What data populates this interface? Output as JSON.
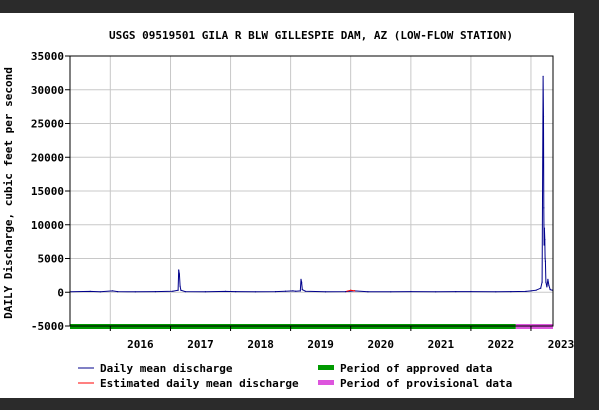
{
  "chart_data": {
    "type": "line",
    "title": "USGS 09519501 GILA R BLW GILLESPIE DAM, AZ (LOW-FLOW STATION)",
    "ylabel": "DAILY Discharge, cubic feet per second",
    "xlabel": "",
    "x_range": [
      "2015-05-01",
      "2023-05-15"
    ],
    "ylim": [
      -5000,
      35000
    ],
    "y_ticks": [
      -5000,
      0,
      5000,
      10000,
      15000,
      20000,
      25000,
      30000,
      35000
    ],
    "y_tick_labels": [
      "-5000",
      "0",
      "5000",
      "10000",
      "15000",
      "20000",
      "25000",
      "30000",
      "35000"
    ],
    "x_ticks": [
      "2016-01-01",
      "2017-01-01",
      "2018-01-01",
      "2019-01-01",
      "2020-01-01",
      "2021-01-01",
      "2022-01-01",
      "2023-01-01"
    ],
    "x_tick_labels": [
      "2016",
      "2017",
      "2018",
      "2019",
      "2020",
      "2021",
      "2022",
      "2023"
    ],
    "grid": true,
    "legend_placement": "bottom",
    "series": [
      {
        "name": "Daily mean discharge",
        "color": "#00008b",
        "style": "line",
        "points": [
          [
            "2015-05-01",
            80
          ],
          [
            "2015-09-01",
            120
          ],
          [
            "2015-11-01",
            60
          ],
          [
            "2016-01-15",
            200
          ],
          [
            "2016-02-15",
            90
          ],
          [
            "2016-06-01",
            60
          ],
          [
            "2016-10-01",
            100
          ],
          [
            "2017-01-15",
            150
          ],
          [
            "2017-02-16",
            300
          ],
          [
            "2017-02-20",
            3300
          ],
          [
            "2017-02-24",
            2700
          ],
          [
            "2017-02-28",
            900
          ],
          [
            "2017-03-05",
            300
          ],
          [
            "2017-04-01",
            100
          ],
          [
            "2017-08-01",
            80
          ],
          [
            "2017-12-01",
            120
          ],
          [
            "2018-02-01",
            90
          ],
          [
            "2018-06-01",
            60
          ],
          [
            "2018-10-01",
            100
          ],
          [
            "2018-12-01",
            150
          ],
          [
            "2019-01-15",
            200
          ],
          [
            "2019-02-01",
            150
          ],
          [
            "2019-03-01",
            200
          ],
          [
            "2019-03-05",
            1900
          ],
          [
            "2019-03-09",
            1500
          ],
          [
            "2019-03-13",
            400
          ],
          [
            "2019-04-01",
            150
          ],
          [
            "2019-08-01",
            60
          ],
          [
            "2019-12-01",
            100
          ],
          [
            "2020-01-25",
            200
          ],
          [
            "2020-04-15",
            80
          ],
          [
            "2020-09-01",
            60
          ],
          [
            "2021-01-01",
            100
          ],
          [
            "2021-06-01",
            60
          ],
          [
            "2021-10-01",
            100
          ],
          [
            "2022-01-01",
            90
          ],
          [
            "2022-06-01",
            60
          ],
          [
            "2022-09-01",
            100
          ],
          [
            "2022-12-01",
            120
          ],
          [
            "2023-01-01",
            200
          ],
          [
            "2023-02-01",
            300
          ],
          [
            "2023-03-01",
            600
          ],
          [
            "2023-03-10",
            1500
          ],
          [
            "2023-03-16",
            32000
          ],
          [
            "2023-03-18",
            26000
          ],
          [
            "2023-03-20",
            12500
          ],
          [
            "2023-03-22",
            7000
          ],
          [
            "2023-03-24",
            9500
          ],
          [
            "2023-03-26",
            7800
          ],
          [
            "2023-03-28",
            5000
          ],
          [
            "2023-03-30",
            4600
          ],
          [
            "2023-04-02",
            1500
          ],
          [
            "2023-04-08",
            800
          ],
          [
            "2023-04-14",
            1900
          ],
          [
            "2023-04-20",
            1000
          ],
          [
            "2023-04-28",
            400
          ],
          [
            "2023-05-10",
            300
          ]
        ]
      },
      {
        "name": "Estimated daily mean discharge",
        "color": "#ff0000",
        "style": "line",
        "points": [
          [
            "2019-12-10",
            150
          ],
          [
            "2020-01-01",
            300
          ],
          [
            "2020-01-25",
            200
          ]
        ]
      }
    ],
    "periods": [
      {
        "name": "Period of approved data",
        "color": "#009900",
        "start": "2015-05-01",
        "end": "2022-10-01"
      },
      {
        "name": "Period of provisional data",
        "color": "#dd55dd",
        "start": "2022-10-01",
        "end": "2023-05-15"
      }
    ],
    "legend": [
      {
        "label": "Daily mean discharge",
        "color": "#00008b",
        "kind": "line"
      },
      {
        "label": "Period of approved data",
        "color": "#009900",
        "kind": "bar"
      },
      {
        "label": "Estimated daily mean discharge",
        "color": "#ff0000",
        "kind": "line"
      },
      {
        "label": "Period of provisional data",
        "color": "#dd55dd",
        "kind": "bar"
      }
    ]
  }
}
